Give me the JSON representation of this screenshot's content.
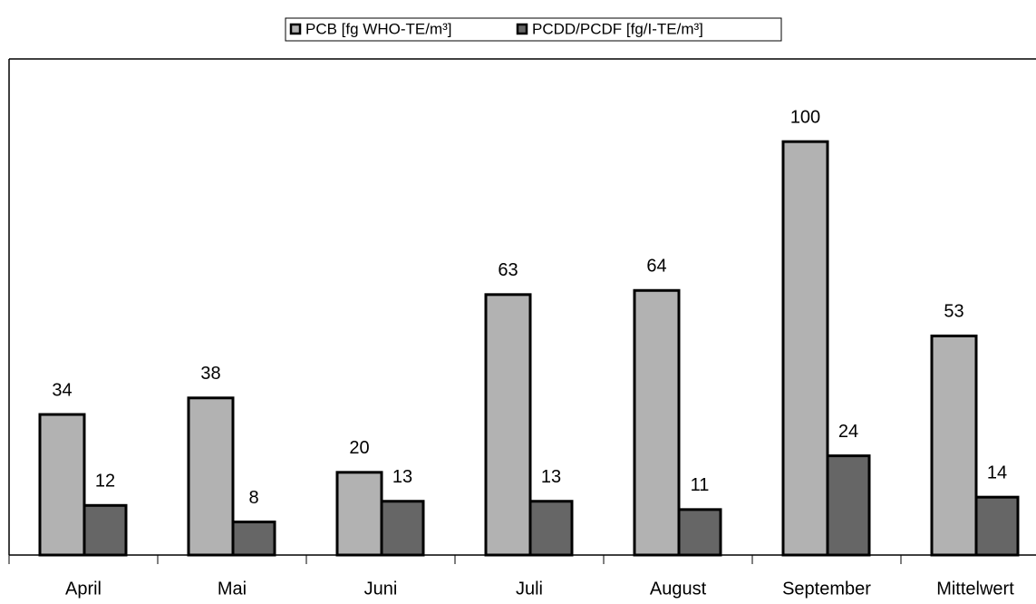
{
  "chart_data": {
    "type": "bar",
    "categories": [
      "April",
      "Mai",
      "Juni",
      "Juli",
      "August",
      "September",
      "Mittelwert"
    ],
    "series": [
      {
        "name": "PCB [fg WHO-TE/m³]",
        "color": "#b2b2b2",
        "values": [
          34,
          38,
          20,
          63,
          64,
          100,
          53
        ]
      },
      {
        "name": "PCDD/PCDF [fg/I-TE/m³]",
        "color": "#666666",
        "values": [
          12,
          8,
          13,
          13,
          11,
          24,
          14
        ]
      }
    ],
    "ylim": [
      0,
      120
    ],
    "grid": false,
    "legend": "top"
  }
}
